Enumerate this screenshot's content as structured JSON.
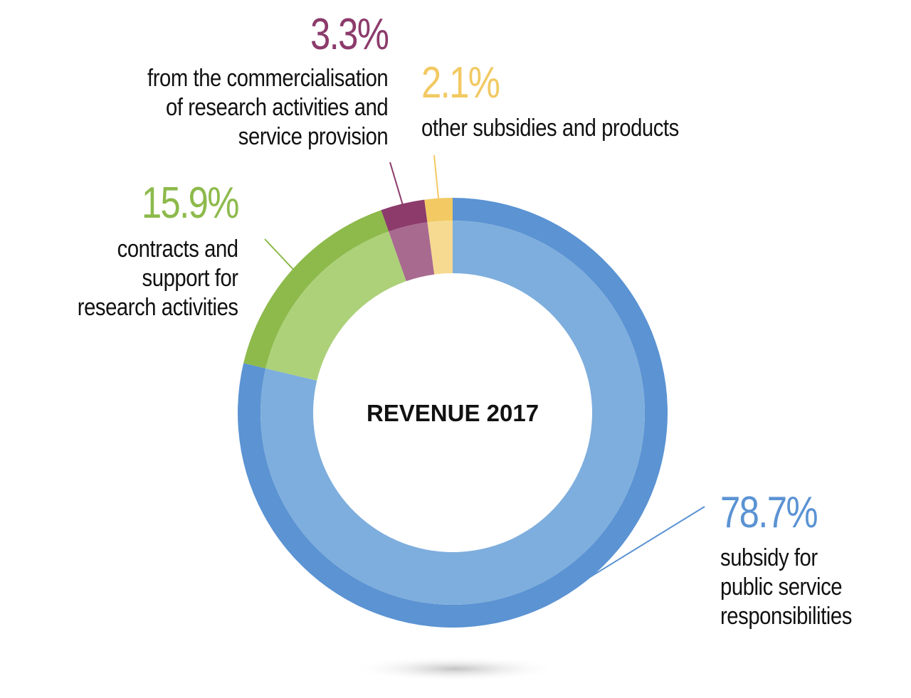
{
  "chart_data": {
    "type": "pie",
    "style": "donut",
    "title": "REVENUE 2017",
    "unit": "%",
    "slices": [
      {
        "label": "subsidy for public service responsibilities",
        "value": 78.7,
        "value_label": "78.7%",
        "color": "#5b93d3",
        "inner_color": "#7eaedd"
      },
      {
        "label": "contracts and support for research activities",
        "value": 15.9,
        "value_label": "15.9%",
        "color": "#8dba4b",
        "inner_color": "#add179"
      },
      {
        "label": "from the commercialisation of research activities and service provision",
        "value": 3.3,
        "value_label": "3.3%",
        "color": "#8c3b6b",
        "inner_color": "#a96a90"
      },
      {
        "label": "other subsidies and products",
        "value": 2.1,
        "value_label": "2.1%",
        "color": "#f2c963",
        "inner_color": "#f6da91"
      }
    ]
  },
  "labels": {
    "subsidy": {
      "percent": "78.7%",
      "text": "subsidy for\npublic service\nresponsibilities"
    },
    "contracts": {
      "percent": "15.9%",
      "text": "contracts and\nsupport for\nresearch activities"
    },
    "commercialisation": {
      "percent": "3.3%",
      "text": "from the commercialisation\nof research activities and\nservice provision"
    },
    "other": {
      "percent": "2.1%",
      "text": "other subsidies and products"
    }
  }
}
